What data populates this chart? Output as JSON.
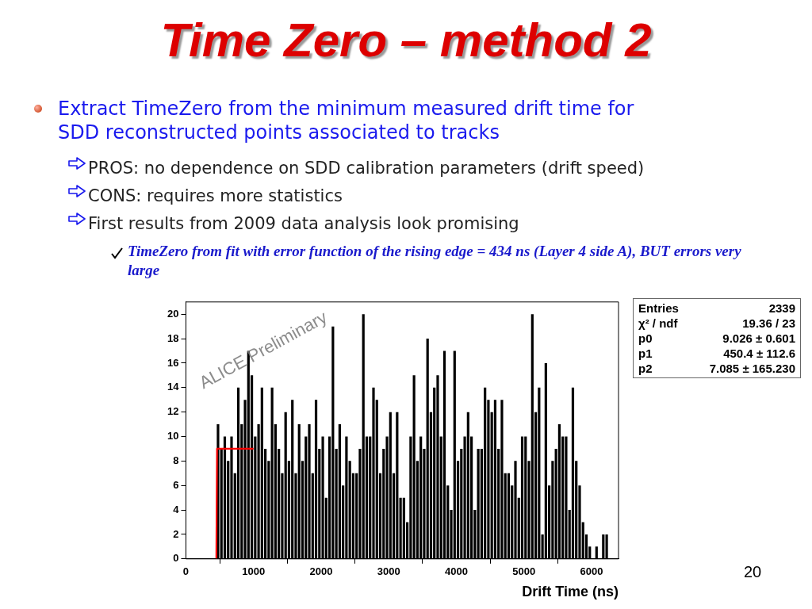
{
  "chart_data": {
    "type": "histogram",
    "title": "Time Zero – method 2",
    "xlabel": "Drift Time (ns)",
    "bins": [
      450,
      500,
      550,
      600,
      650,
      700,
      750,
      800,
      850,
      900,
      950,
      1000,
      1050,
      1100,
      1150,
      1200,
      1250,
      1300,
      1350,
      1400,
      1450,
      1500,
      1550,
      1600,
      1650,
      1700,
      1750,
      1800,
      1850,
      1900,
      1950,
      2000,
      2050,
      2100,
      2150,
      2200,
      2250,
      2300,
      2350,
      2400,
      2450,
      2500,
      2550,
      2600,
      2650,
      2700,
      2750,
      2800,
      2850,
      2900,
      2950,
      3000,
      3050,
      3100,
      3150,
      3200,
      3250,
      3300,
      3350,
      3400,
      3450,
      3500,
      3550,
      3600,
      3650,
      3700,
      3750,
      3800,
      3850,
      3900,
      3950,
      4000,
      4050,
      4100,
      4150,
      4200,
      4250,
      4300,
      4350,
      4400,
      4450,
      4500,
      4550,
      4600,
      4650,
      4700,
      4750,
      4800,
      4850,
      4900,
      4950,
      5000,
      5050,
      5100,
      5150,
      5200,
      5250,
      5300,
      5350,
      5400,
      5450,
      5500,
      5550,
      5600,
      5650,
      5700,
      5750,
      5800,
      5850,
      5900,
      5950,
      6000,
      6050,
      6100,
      6150,
      6200,
      6250
    ],
    "values": [
      11,
      9,
      10,
      8,
      10,
      7,
      14,
      11,
      13,
      17,
      15,
      10,
      11,
      14,
      9,
      8,
      14,
      11,
      9,
      7,
      12,
      8,
      13,
      7,
      11,
      8,
      10,
      11,
      7,
      13,
      9,
      10,
      5,
      10,
      19,
      9,
      11,
      6,
      10,
      8,
      7,
      7,
      9,
      20,
      10,
      10,
      14,
      13,
      7,
      9,
      10,
      12,
      7,
      12,
      5,
      5,
      3,
      10,
      15,
      8,
      10,
      9,
      18,
      12,
      14,
      15,
      10,
      17,
      6,
      4,
      17,
      8,
      9,
      10,
      12,
      10,
      4,
      9,
      9,
      14,
      13,
      12,
      13,
      9,
      13,
      7,
      7,
      6,
      8,
      5,
      10,
      10,
      8,
      20,
      12,
      14,
      2,
      16,
      6,
      8,
      9,
      11,
      10,
      10,
      4,
      14,
      8,
      6,
      3,
      2,
      1,
      0,
      1,
      0,
      2,
      2
    ],
    "color": "#000000",
    "series": [
      {
        "type": "line",
        "x": [
          450,
          460,
          1000
        ],
        "values": [
          0,
          9,
          9
        ],
        "color": "#ff0000",
        "marker": "none"
      }
    ],
    "xlim": [
      0,
      6400
    ],
    "xticks": [
      0,
      1000,
      2000,
      3000,
      4000,
      5000,
      6000
    ],
    "ylim": [
      0,
      21
    ],
    "yticks": [
      0,
      2,
      4,
      6,
      8,
      10,
      12,
      14,
      16,
      18,
      20
    ],
    "grid": false,
    "legend": false,
    "annotations": [
      "Extract TimeZero from the minimum measured drift time for SDD reconstructed points associated to tracks",
      "PROS: no dependence on SDD calibration parameters (drift speed)",
      "CONS: requires more statistics",
      "First results from 2009 data analysis look promising",
      "TimeZero from fit with error function of the rising edge = 434 ns (Layer 4 side A), BUT errors very large",
      "ALICE Preliminary",
      "Entries",
      "2339",
      "χ² / ndf",
      "19.36 / 23",
      "p0",
      "9.026 ± 0.601",
      "p1",
      "450.4 ± 112.6",
      "p2",
      "7.085 ± 165.230",
      "20"
    ]
  }
}
